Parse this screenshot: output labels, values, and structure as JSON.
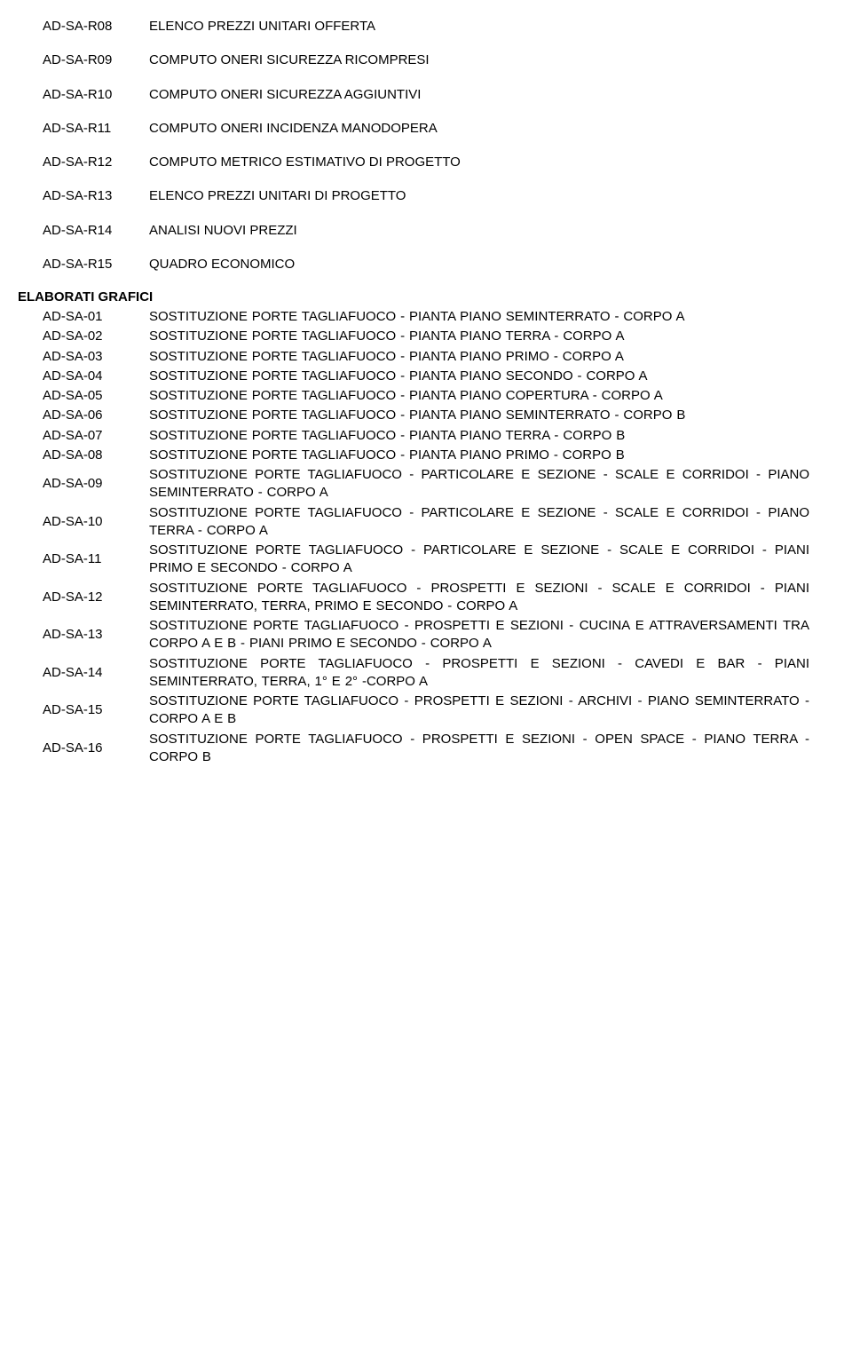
{
  "font_family": "Arial, Helvetica, sans-serif",
  "font_size_pt": 11,
  "background_color": "#ffffff",
  "text_color": "#000000",
  "top_items": [
    {
      "code": "AD-SA-R08",
      "desc": "ELENCO PREZZI UNITARI OFFERTA"
    },
    {
      "code": "AD-SA-R09",
      "desc": "COMPUTO ONERI SICUREZZA RICOMPRESI"
    },
    {
      "code": "AD-SA-R10",
      "desc": "COMPUTO ONERI SICUREZZA AGGIUNTIVI"
    },
    {
      "code": "AD-SA-R11",
      "desc": "COMPUTO ONERI INCIDENZA MANODOPERA"
    },
    {
      "code": "AD-SA-R12",
      "desc": "COMPUTO METRICO ESTIMATIVO DI PROGETTO"
    },
    {
      "code": "AD-SA-R13",
      "desc": "ELENCO PREZZI UNITARI DI PROGETTO"
    },
    {
      "code": "AD-SA-R14",
      "desc": "ANALISI NUOVI PREZZI"
    },
    {
      "code": "AD-SA-R15",
      "desc": "QUADRO ECONOMICO"
    }
  ],
  "section_header": "ELABORATI GRAFICI",
  "graf_items": [
    {
      "code": "AD-SA-01",
      "desc": "SOSTITUZIONE PORTE TAGLIAFUOCO - PIANTA PIANO SEMINTERRATO - CORPO A"
    },
    {
      "code": "AD-SA-02",
      "desc": "SOSTITUZIONE PORTE TAGLIAFUOCO - PIANTA PIANO TERRA - CORPO A"
    },
    {
      "code": "AD-SA-03",
      "desc": "SOSTITUZIONE PORTE TAGLIAFUOCO - PIANTA PIANO PRIMO - CORPO A"
    },
    {
      "code": "AD-SA-04",
      "desc": "SOSTITUZIONE PORTE TAGLIAFUOCO - PIANTA PIANO SECONDO - CORPO A"
    },
    {
      "code": "AD-SA-05",
      "desc": "SOSTITUZIONE PORTE TAGLIAFUOCO - PIANTA PIANO COPERTURA - CORPO A"
    },
    {
      "code": "AD-SA-06",
      "desc": "SOSTITUZIONE PORTE TAGLIAFUOCO - PIANTA PIANO SEMINTERRATO - CORPO B"
    },
    {
      "code": "AD-SA-07",
      "desc": "SOSTITUZIONE PORTE TAGLIAFUOCO - PIANTA PIANO TERRA - CORPO B"
    },
    {
      "code": "AD-SA-08",
      "desc": "SOSTITUZIONE PORTE TAGLIAFUOCO - PIANTA PIANO PRIMO - CORPO B"
    },
    {
      "code": "AD-SA-09",
      "desc": "SOSTITUZIONE PORTE TAGLIAFUOCO - PARTICOLARE E SEZIONE - SCALE E CORRIDOI - PIANO SEMINTERRATO - CORPO A"
    },
    {
      "code": "AD-SA-10",
      "desc": "SOSTITUZIONE PORTE TAGLIAFUOCO - PARTICOLARE E SEZIONE - SCALE E CORRIDOI - PIANO TERRA - CORPO A"
    },
    {
      "code": "AD-SA-11",
      "desc": "SOSTITUZIONE PORTE TAGLIAFUOCO - PARTICOLARE E SEZIONE - SCALE E CORRIDOI - PIANI PRIMO E SECONDO - CORPO A"
    },
    {
      "code": "AD-SA-12",
      "desc": "SOSTITUZIONE PORTE TAGLIAFUOCO - PROSPETTI E SEZIONI - SCALE E CORRIDOI - PIANI SEMINTERRATO, TERRA, PRIMO E SECONDO - CORPO A"
    },
    {
      "code": "AD-SA-13",
      "desc": "SOSTITUZIONE PORTE TAGLIAFUOCO - PROSPETTI E SEZIONI - CUCINA E ATTRAVERSAMENTI TRA CORPO A E B - PIANI PRIMO E SECONDO - CORPO A"
    },
    {
      "code": "AD-SA-14",
      "desc": "SOSTITUZIONE PORTE TAGLIAFUOCO - PROSPETTI E SEZIONI - CAVEDI E BAR - PIANI SEMINTERRATO, TERRA, 1° E 2° -CORPO A"
    },
    {
      "code": "AD-SA-15",
      "desc": "SOSTITUZIONE PORTE TAGLIAFUOCO - PROSPETTI E SEZIONI - ARCHIVI - PIANO SEMINTERRATO - CORPO A E B"
    },
    {
      "code": "AD-SA-16",
      "desc": "SOSTITUZIONE PORTE TAGLIAFUOCO - PROSPETTI E SEZIONI - OPEN SPACE - PIANO TERRA - CORPO B"
    }
  ]
}
